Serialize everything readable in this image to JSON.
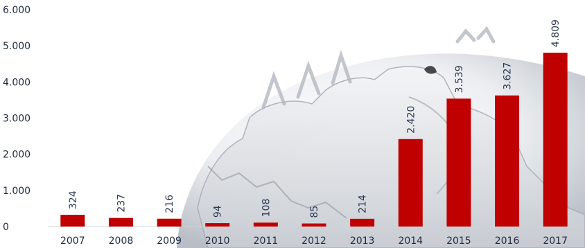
{
  "chart_data": {
    "type": "bar",
    "categories": [
      "2007",
      "2008",
      "2009",
      "2010",
      "2011",
      "2012",
      "2013",
      "2014",
      "2015",
      "2016",
      "2017"
    ],
    "values": [
      324,
      237,
      216,
      94,
      108,
      85,
      214,
      2420,
      3539,
      3627,
      4809
    ],
    "value_labels": [
      "324",
      "237",
      "216",
      "94",
      "108",
      "85",
      "214",
      "2.420",
      "3.539",
      "3.627",
      "4.809"
    ],
    "y_ticks": [
      0,
      1000,
      2000,
      3000,
      4000,
      5000,
      6000
    ],
    "y_tick_labels": [
      "0",
      "1.000",
      "2.000",
      "3.000",
      "4.000",
      "5.000",
      "6.000"
    ],
    "ylim": [
      0,
      6000
    ],
    "grid": false,
    "legend": "none",
    "title": "",
    "xlabel": "",
    "ylabel": "",
    "bar_color": "#c00000",
    "label_orientation": "vertical",
    "background_image": "globe-map"
  }
}
